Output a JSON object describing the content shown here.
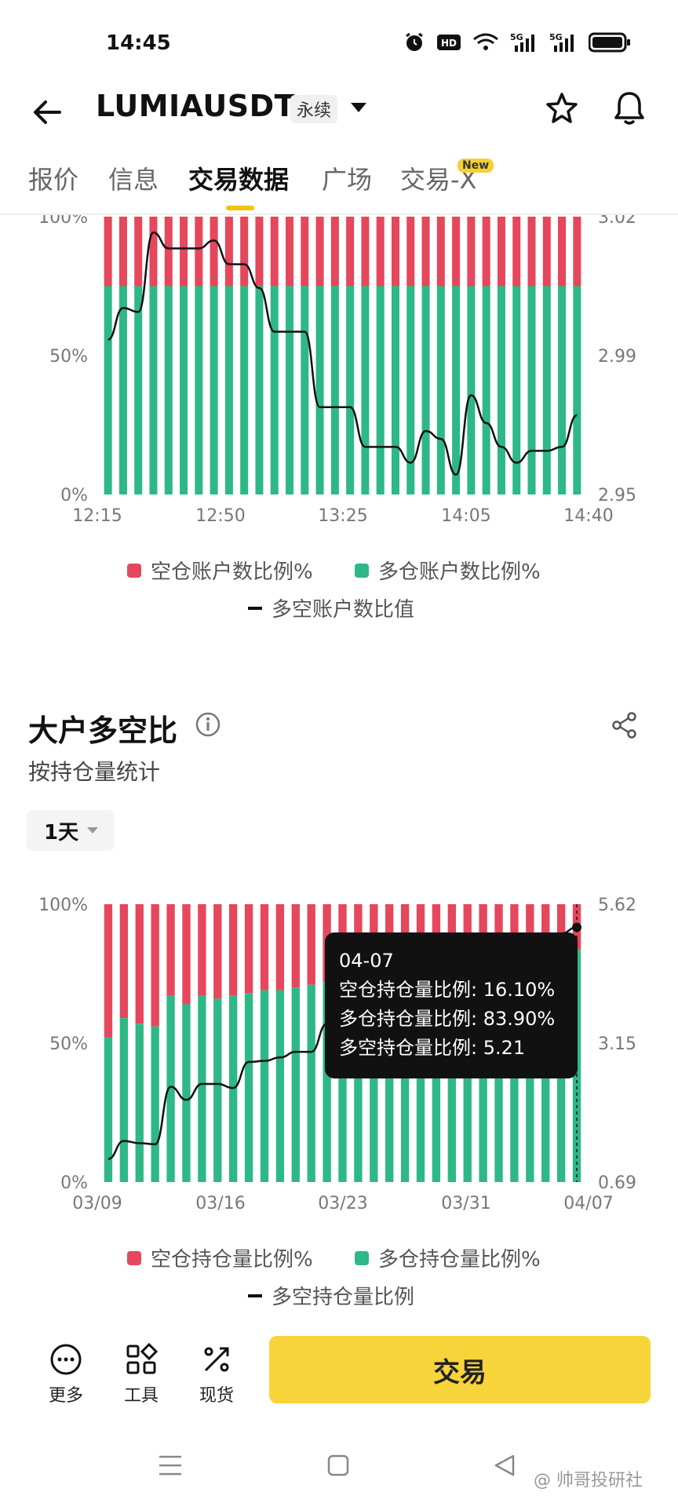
{
  "status_bar": {
    "time": "14:45",
    "icons": [
      "alarm-icon",
      "hd-icon",
      "wifi-icon",
      "5g-signal-icon",
      "5g-signal-icon",
      "battery-icon"
    ],
    "hd_label": "HD",
    "net_label_1": "5G",
    "net_label_2": "5G"
  },
  "header": {
    "symbol": "LUMIAUSDT",
    "contract_type": "永续"
  },
  "tabs": [
    {
      "label": "报价",
      "active": false
    },
    {
      "label": "信息",
      "active": false
    },
    {
      "label": "交易数据",
      "active": true
    },
    {
      "label": "广场",
      "active": false
    },
    {
      "label": "交易-X",
      "active": false
    }
  ],
  "new_badge": "New",
  "colors": {
    "short": "#e5475c",
    "long": "#2eb887",
    "line": "#111111",
    "accent": "#f7d43a"
  },
  "chart1": {
    "legend": {
      "short_label": "空仓账户数比例%",
      "long_label": "多仓账户数比例%",
      "ratio_label": "多空账户数比值"
    },
    "chart_data": {
      "type": "bar",
      "stacked": true,
      "left_axis_ticks": [
        "100%",
        "50%",
        "0%"
      ],
      "right_axis_ticks": [
        "3.02",
        "2.99",
        "2.95"
      ],
      "right_ylim": [
        2.95,
        3.02
      ],
      "x_ticks": [
        "12:15",
        "12:50",
        "13:25",
        "14:05",
        "14:40"
      ],
      "series": [
        {
          "name": "空仓账户数比例%",
          "values": [
            25,
            25,
            25,
            25,
            25,
            25,
            25,
            25,
            25,
            25,
            25,
            25,
            25,
            25,
            25,
            25,
            25,
            25,
            25,
            25,
            25,
            25,
            25,
            25,
            25,
            25,
            25,
            25,
            25,
            25,
            25,
            25
          ]
        },
        {
          "name": "多仓账户数比例%",
          "values": [
            75,
            75,
            75,
            75,
            75,
            75,
            75,
            75,
            75,
            75,
            75,
            75,
            75,
            75,
            75,
            75,
            75,
            75,
            75,
            75,
            75,
            75,
            75,
            75,
            75,
            75,
            75,
            75,
            75,
            75,
            75,
            75
          ]
        }
      ],
      "line": {
        "name": "多空账户数比值",
        "values": [
          2.989,
          2.997,
          2.996,
          3.016,
          3.012,
          3.012,
          3.012,
          3.014,
          3.008,
          3.008,
          3.002,
          2.991,
          2.991,
          2.991,
          2.972,
          2.972,
          2.972,
          2.962,
          2.962,
          2.962,
          2.958,
          2.966,
          2.964,
          2.955,
          2.975,
          2.968,
          2.962,
          2.958,
          2.961,
          2.961,
          2.962,
          2.97
        ]
      }
    }
  },
  "section2": {
    "title": "大户多空比",
    "subtitle": "按持仓量统计",
    "period": "1天"
  },
  "chart2": {
    "legend": {
      "short_label": "空仓持仓量比例%",
      "long_label": "多仓持仓量比例%",
      "ratio_label": "多空持仓量比例"
    },
    "tooltip": {
      "date": "04-07",
      "short_line": "空仓持仓量比例: 16.10%",
      "long_line": "多仓持仓量比例: 83.90%",
      "ratio_line": "多空持仓量比例: 5.21"
    },
    "chart_data": {
      "type": "bar",
      "stacked": true,
      "left_axis_ticks": [
        "100%",
        "50%",
        "0%"
      ],
      "right_axis_ticks": [
        "5.62",
        "3.15",
        "0.69"
      ],
      "right_ylim": [
        0.69,
        5.62
      ],
      "x_ticks": [
        "03/09",
        "03/16",
        "03/23",
        "03/31",
        "04/07"
      ],
      "series": [
        {
          "name": "空仓持仓量比例%",
          "values": [
            48,
            41,
            43,
            44,
            33,
            36,
            33,
            34,
            33,
            32,
            31,
            31,
            30,
            29,
            28,
            27,
            26,
            25,
            25,
            24,
            24,
            23,
            22,
            21,
            21,
            20,
            20,
            19,
            18,
            17,
            16.1
          ]
        },
        {
          "name": "多仓持仓量比例%",
          "values": [
            52,
            59,
            57,
            56,
            67,
            64,
            67,
            66,
            67,
            68,
            69,
            69,
            70,
            71,
            72,
            73,
            74,
            75,
            75,
            76,
            76,
            77,
            78,
            79,
            79,
            80,
            80,
            81,
            82,
            83,
            83.9
          ]
        }
      ],
      "line": {
        "name": "多空持仓量比例",
        "values": [
          1.1,
          1.42,
          1.38,
          1.36,
          2.38,
          2.15,
          2.43,
          2.43,
          2.36,
          2.82,
          2.84,
          2.9,
          3.0,
          3.0,
          3.5,
          3.6,
          3.5,
          3.5,
          3.62,
          3.8,
          4.0,
          4.2,
          4.35,
          4.5,
          4.6,
          4.7,
          4.8,
          4.9,
          5.0,
          5.1,
          5.21
        ]
      }
    }
  },
  "bottom_bar": {
    "more_label": "更多",
    "tools_label": "工具",
    "spot_label": "现货",
    "trade_label": "交易"
  },
  "watermark": "@ 帅哥投研社"
}
